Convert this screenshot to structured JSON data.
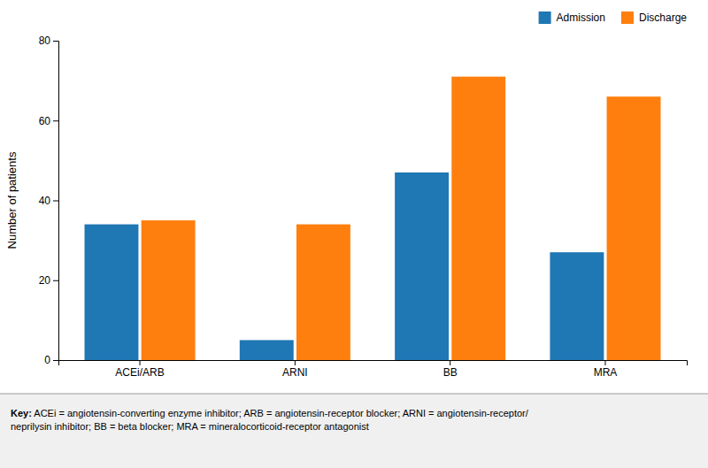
{
  "chart_data": {
    "type": "bar",
    "categories": [
      "ACEi/ARB",
      "ARNI",
      "BB",
      "MRA"
    ],
    "series": [
      {
        "name": "Admission",
        "values": [
          34,
          5,
          47,
          27
        ]
      },
      {
        "name": "Discharge",
        "values": [
          35,
          34,
          71,
          66
        ]
      }
    ],
    "ylabel": "Number of patients",
    "ylim": [
      0,
      80
    ],
    "yticks": [
      0,
      20,
      40,
      60,
      80
    ],
    "grid": false,
    "legend": "upper right",
    "annotations": [
      "Key:",
      " ACEi = angiotensin-converting enzyme inhibitor; ARB = angiotensin-receptor blocker; ARNI = angiotensin-receptor/\nneprilysin inhibitor; BB = beta blocker; MRA = mineralocorticoid-receptor antagonist"
    ]
  }
}
